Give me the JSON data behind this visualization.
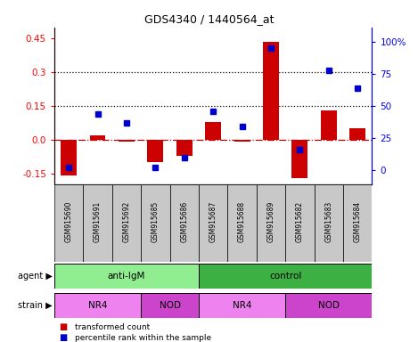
{
  "title": "GDS4340 / 1440564_at",
  "samples": [
    "GSM915690",
    "GSM915691",
    "GSM915692",
    "GSM915685",
    "GSM915686",
    "GSM915687",
    "GSM915688",
    "GSM915689",
    "GSM915682",
    "GSM915683",
    "GSM915684"
  ],
  "red_values": [
    -0.16,
    0.02,
    -0.01,
    -0.1,
    -0.07,
    0.08,
    -0.01,
    0.435,
    -0.17,
    0.13,
    0.05
  ],
  "blue_percentiles": [
    2,
    44,
    37,
    2.5,
    10,
    46,
    34,
    95,
    16,
    78,
    64
  ],
  "ylim_left": [
    -0.2,
    0.5
  ],
  "ylim_right": [
    -11.11,
    111.11
  ],
  "yticks_left": [
    -0.15,
    0.0,
    0.15,
    0.3,
    0.45
  ],
  "yticks_right": [
    0,
    25,
    50,
    75,
    100
  ],
  "hlines": [
    0.15,
    0.3
  ],
  "agent_groups": [
    {
      "label": "anti-IgM",
      "start": 0,
      "end": 5,
      "color": "#90EE90"
    },
    {
      "label": "control",
      "start": 5,
      "end": 11,
      "color": "#3CB043"
    }
  ],
  "strain_groups": [
    {
      "label": "NR4",
      "start": 0,
      "end": 3,
      "color": "#EE82EE"
    },
    {
      "label": "NOD",
      "start": 3,
      "end": 5,
      "color": "#CC44CC"
    },
    {
      "label": "NR4",
      "start": 5,
      "end": 8,
      "color": "#EE82EE"
    },
    {
      "label": "NOD",
      "start": 8,
      "end": 11,
      "color": "#CC44CC"
    }
  ],
  "bar_color": "#CC0000",
  "dot_color": "#0000CC",
  "legend_items": [
    {
      "label": "transformed count",
      "color": "#CC0000"
    },
    {
      "label": "percentile rank within the sample",
      "color": "#0000CC"
    }
  ],
  "zero_line_color": "#CC0000",
  "label_bg": "#C8C8C8",
  "fig_width": 4.69,
  "fig_height": 3.84,
  "dpi": 100
}
